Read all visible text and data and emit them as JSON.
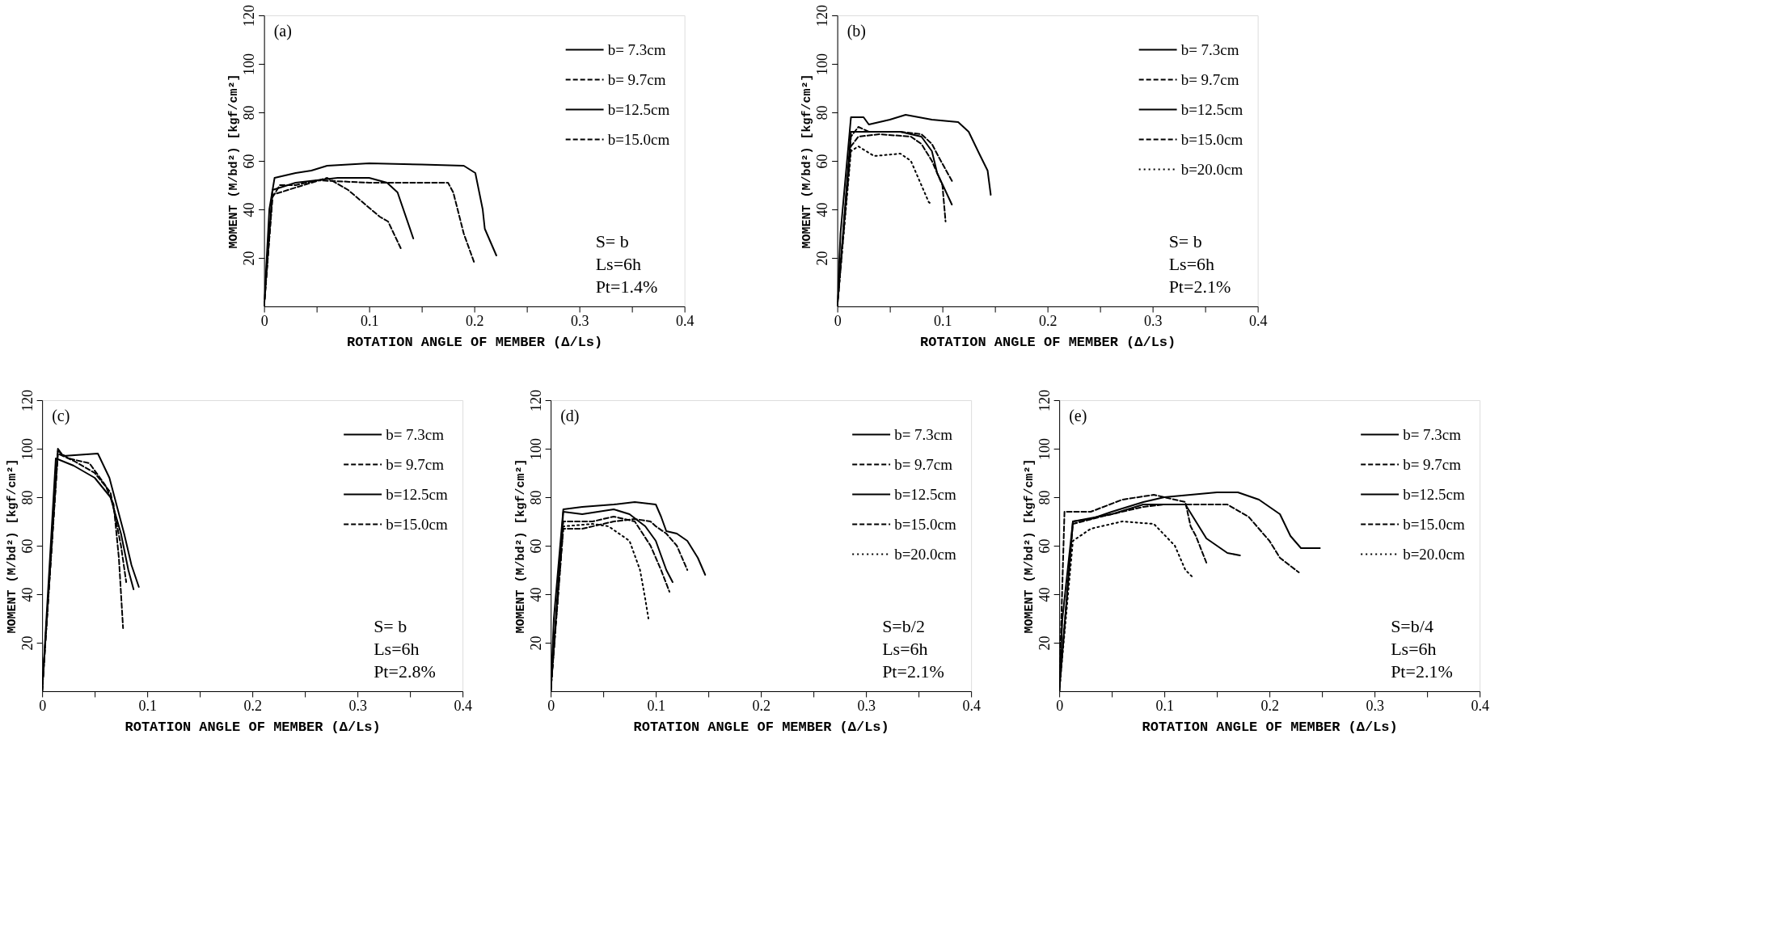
{
  "chart_data": [
    {
      "type": "line",
      "title": "(a)",
      "xlabel": "ROTATION ANGLE OF MEMBER (Δ/Ls)",
      "ylabel": "MOMENT (M/bd²) [kgf/cm²]",
      "xlim": [
        0,
        0.4
      ],
      "ylim": [
        0,
        120
      ],
      "xticks": [
        0,
        {
          "value": 0.05,
          "label": null
        },
        0.1,
        {
          "value": 0.15,
          "label": null
        },
        0.2,
        {
          "value": 0.25,
          "label": null
        },
        0.3,
        {
          "value": 0.35,
          "label": null
        },
        0.4
      ],
      "yticks": [
        20,
        40,
        60,
        80,
        100,
        120
      ],
      "grid": false,
      "legend": "top right",
      "annotations": [
        "S= b",
        "Ls=6h",
        "Pt=1.4%"
      ],
      "series": [
        {
          "name": "b= 7.3cm",
          "color": "#000000",
          "line_style": "solid",
          "x": [
            0,
            0.005,
            0.01,
            0.03,
            0.045,
            0.06,
            0.1,
            0.15,
            0.19,
            0.201,
            0.208,
            0.21,
            0.221
          ],
          "values": [
            0,
            40,
            53,
            55,
            56,
            58,
            59,
            58.5,
            58,
            55,
            40,
            32,
            21
          ]
        },
        {
          "name": "b= 9.7cm",
          "color": "#000000",
          "line_style": "dashed",
          "x": [
            0,
            0.008,
            0.015,
            0.03,
            0.05,
            0.1,
            0.15,
            0.175,
            0.18,
            0.19,
            0.2
          ],
          "values": [
            0,
            45,
            50,
            50,
            52,
            51,
            51,
            51,
            47,
            30,
            18
          ]
        },
        {
          "name": "b=12.5cm",
          "color": "#000000",
          "line_style": "solid",
          "x": [
            0,
            0.008,
            0.03,
            0.07,
            0.1,
            0.117,
            0.127,
            0.142
          ],
          "values": [
            0,
            48,
            51,
            53,
            53,
            51,
            47,
            28
          ]
        },
        {
          "name": "b=15.0cm",
          "color": "#000000",
          "line_style": "dashed",
          "x": [
            0,
            0.008,
            0.03,
            0.06,
            0.08,
            0.11,
            0.118,
            0.13
          ],
          "values": [
            0,
            46,
            49,
            53,
            48,
            37,
            35,
            24
          ]
        }
      ]
    },
    {
      "type": "line",
      "title": "(b)",
      "xlabel": "ROTATION ANGLE OF MEMBER (Δ/Ls)",
      "ylabel": "MOMENT (M/bd²) [kgf/cm²]",
      "xlim": [
        0,
        0.4
      ],
      "ylim": [
        0,
        120
      ],
      "xticks": [
        0,
        {
          "value": 0.05,
          "label": null
        },
        0.1,
        {
          "value": 0.15,
          "label": null
        },
        0.2,
        {
          "value": 0.25,
          "label": null
        },
        0.3,
        {
          "value": 0.35,
          "label": null
        },
        0.4
      ],
      "yticks": [
        20,
        40,
        60,
        80,
        100,
        120
      ],
      "grid": false,
      "legend": "top right",
      "annotations": [
        "S= b",
        "Ls=6h",
        "Pt=2.1%"
      ],
      "series": [
        {
          "name": "b= 7.3cm",
          "color": "#000000",
          "line_style": "solid",
          "x": [
            0,
            0.003,
            0.013,
            0.025,
            0.03,
            0.05,
            0.065,
            0.09,
            0.115,
            0.125,
            0.135,
            0.143,
            0.146
          ],
          "values": [
            0,
            30,
            78,
            78,
            75,
            77,
            79,
            77,
            76,
            72,
            63,
            56,
            46
          ]
        },
        {
          "name": "b= 9.7cm",
          "color": "#000000",
          "line_style": "dashed",
          "x": [
            0,
            0.013,
            0.02,
            0.03,
            0.06,
            0.08,
            0.09,
            0.096,
            0.11
          ],
          "values": [
            0,
            70,
            74,
            72,
            72,
            71,
            67,
            62,
            51
          ]
        },
        {
          "name": "b=12.5cm",
          "color": "#000000",
          "line_style": "solid",
          "x": [
            0,
            0.013,
            0.03,
            0.06,
            0.08,
            0.09,
            0.095,
            0.109
          ],
          "values": [
            0,
            72,
            72,
            72,
            70,
            64,
            55,
            42
          ]
        },
        {
          "name": "b=15.0cm",
          "color": "#000000",
          "line_style": "dashed",
          "x": [
            0,
            0.013,
            0.02,
            0.04,
            0.07,
            0.08,
            0.09,
            0.1,
            0.103
          ],
          "values": [
            0,
            66,
            70,
            71,
            70,
            67,
            60,
            50,
            35
          ]
        },
        {
          "name": "b=20.0cm",
          "color": "#000000",
          "line_style": "dotted",
          "x": [
            0,
            0.013,
            0.02,
            0.035,
            0.06,
            0.07,
            0.087,
            0.09
          ],
          "values": [
            0,
            64,
            66,
            62,
            63,
            60,
            43,
            42
          ]
        }
      ]
    },
    {
      "type": "line",
      "title": "(c)",
      "xlabel": "ROTATION ANGLE OF MEMBER (Δ/Ls)",
      "ylabel": "MOMENT (M/bd²) [kgf/cm²]",
      "xlim": [
        0,
        0.4
      ],
      "ylim": [
        0,
        120
      ],
      "xticks": [
        0,
        {
          "value": 0.05,
          "label": null
        },
        0.1,
        {
          "value": 0.15,
          "label": null
        },
        0.2,
        {
          "value": 0.25,
          "label": null
        },
        0.3,
        {
          "value": 0.35,
          "label": null
        },
        0.4
      ],
      "yticks": [
        20,
        40,
        60,
        80,
        100,
        120
      ],
      "grid": false,
      "legend": "top right",
      "annotations": [
        "S= b",
        "Ls=6h",
        "Pt=2.8%"
      ],
      "series": [
        {
          "name": "b= 7.3cm",
          "color": "#000000",
          "line_style": "solid",
          "x": [
            0,
            0.015,
            0.02,
            0.053,
            0.064,
            0.078,
            0.085,
            0.092
          ],
          "values": [
            0,
            100,
            97,
            98,
            88,
            65,
            52,
            43
          ]
        },
        {
          "name": "b= 9.7cm",
          "color": "#000000",
          "line_style": "dashed",
          "x": [
            0,
            0.015,
            0.025,
            0.045,
            0.06,
            0.068,
            0.073,
            0.077
          ],
          "values": [
            0,
            99,
            96,
            94,
            85,
            77,
            55,
            26
          ]
        },
        {
          "name": "b=12.5cm",
          "color": "#000000",
          "line_style": "solid",
          "x": [
            0,
            0.013,
            0.03,
            0.05,
            0.065,
            0.075,
            0.082,
            0.087
          ],
          "values": [
            0,
            96,
            93,
            88,
            80,
            65,
            50,
            42
          ]
        },
        {
          "name": "b=15.0cm",
          "color": "#000000",
          "line_style": "dashed",
          "x": [
            0,
            0.015,
            0.03,
            0.05,
            0.065,
            0.075,
            0.08
          ],
          "values": [
            0,
            98,
            95,
            90,
            82,
            60,
            45
          ]
        }
      ]
    },
    {
      "type": "line",
      "title": "(d)",
      "xlabel": "ROTATION ANGLE OF MEMBER (Δ/Ls)",
      "ylabel": "MOMENT (M/bd²) [kgf/cm²]",
      "xlim": [
        0,
        0.4
      ],
      "ylim": [
        0,
        120
      ],
      "xticks": [
        0,
        {
          "value": 0.05,
          "label": null
        },
        0.1,
        {
          "value": 0.15,
          "label": null
        },
        0.2,
        {
          "value": 0.25,
          "label": null
        },
        0.3,
        {
          "value": 0.35,
          "label": null
        },
        0.4
      ],
      "yticks": [
        20,
        40,
        60,
        80,
        100,
        120
      ],
      "grid": false,
      "legend": "top right",
      "annotations": [
        "S=b/2",
        "Ls=6h",
        "Pt=2.1%"
      ],
      "series": [
        {
          "name": "b= 7.3cm",
          "color": "#000000",
          "line_style": "solid",
          "x": [
            0,
            0.003,
            0.012,
            0.03,
            0.06,
            0.08,
            0.1,
            0.105,
            0.11,
            0.12,
            0.13,
            0.14,
            0.147
          ],
          "values": [
            0,
            30,
            75,
            76,
            77,
            78,
            77,
            72,
            66,
            65,
            62,
            55,
            48
          ]
        },
        {
          "name": "b= 9.7cm",
          "color": "#000000",
          "line_style": "dashed",
          "x": [
            0,
            0.012,
            0.03,
            0.06,
            0.08,
            0.095,
            0.1,
            0.11,
            0.12,
            0.13
          ],
          "values": [
            0,
            67,
            67,
            70,
            71,
            70,
            68,
            65,
            60,
            50
          ]
        },
        {
          "name": "b=12.5cm",
          "color": "#000000",
          "line_style": "solid",
          "x": [
            0,
            0.012,
            0.03,
            0.06,
            0.075,
            0.09,
            0.1,
            0.11,
            0.116
          ],
          "values": [
            0,
            74,
            73,
            75,
            73,
            68,
            62,
            50,
            45
          ]
        },
        {
          "name": "b=15.0cm",
          "color": "#000000",
          "line_style": "dashed",
          "x": [
            0,
            0.012,
            0.04,
            0.06,
            0.08,
            0.095,
            0.105,
            0.113
          ],
          "values": [
            0,
            70,
            70,
            72,
            70,
            60,
            50,
            41
          ]
        },
        {
          "name": "b=20.0cm",
          "color": "#000000",
          "line_style": "dotted",
          "x": [
            0,
            0.012,
            0.04,
            0.055,
            0.075,
            0.085,
            0.09,
            0.093
          ],
          "values": [
            0,
            68,
            69,
            68,
            62,
            50,
            38,
            30
          ]
        }
      ]
    },
    {
      "type": "line",
      "title": "(e)",
      "xlabel": "ROTATION ANGLE OF MEMBER (Δ/Ls)",
      "ylabel": "MOMENT (M/bd²) [kgf/cm²]",
      "xlim": [
        0,
        0.4
      ],
      "ylim": [
        0,
        120
      ],
      "xticks": [
        0,
        {
          "value": 0.05,
          "label": null
        },
        0.1,
        {
          "value": 0.15,
          "label": null
        },
        0.2,
        {
          "value": 0.25,
          "label": null
        },
        0.3,
        {
          "value": 0.35,
          "label": null
        },
        0.4
      ],
      "yticks": [
        20,
        40,
        60,
        80,
        100,
        120
      ],
      "grid": false,
      "legend": "top right",
      "annotations": [
        "S=b/4",
        "Ls=6h",
        "Pt=2.1%"
      ],
      "series": [
        {
          "name": "b= 7.3cm",
          "color": "#000000",
          "line_style": "solid",
          "x": [
            0,
            0.003,
            0.013,
            0.03,
            0.05,
            0.08,
            0.1,
            0.15,
            0.17,
            0.19,
            0.21,
            0.22,
            0.23,
            0.248
          ],
          "values": [
            0,
            30,
            70,
            71,
            74,
            78,
            80,
            82,
            82,
            79,
            73,
            64,
            59,
            59
          ]
        },
        {
          "name": "b= 9.7cm",
          "color": "#000000",
          "line_style": "dashed",
          "x": [
            0,
            0.013,
            0.04,
            0.08,
            0.1,
            0.16,
            0.18,
            0.2,
            0.21,
            0.228
          ],
          "values": [
            0,
            69,
            72,
            76,
            77,
            77,
            72,
            62,
            55,
            49
          ]
        },
        {
          "name": "b=12.5cm",
          "color": "#000000",
          "line_style": "solid",
          "x": [
            0,
            0.013,
            0.05,
            0.08,
            0.12,
            0.13,
            0.14,
            0.16,
            0.172
          ],
          "values": [
            0,
            70,
            73,
            77,
            77,
            70,
            63,
            57,
            56
          ]
        },
        {
          "name": "b=15.0cm",
          "color": "#000000",
          "line_style": "dashed",
          "x": [
            0,
            0.005,
            0.03,
            0.06,
            0.09,
            0.12,
            0.125,
            0.13,
            0.14
          ],
          "values": [
            0,
            74,
            74,
            79,
            81,
            78,
            68,
            64,
            53
          ]
        },
        {
          "name": "b=20.0cm",
          "color": "#000000",
          "line_style": "dotted",
          "x": [
            0,
            0.013,
            0.03,
            0.06,
            0.09,
            0.11,
            0.12,
            0.127
          ],
          "values": [
            0,
            62,
            67,
            70,
            69,
            60,
            50,
            47
          ]
        }
      ]
    }
  ]
}
